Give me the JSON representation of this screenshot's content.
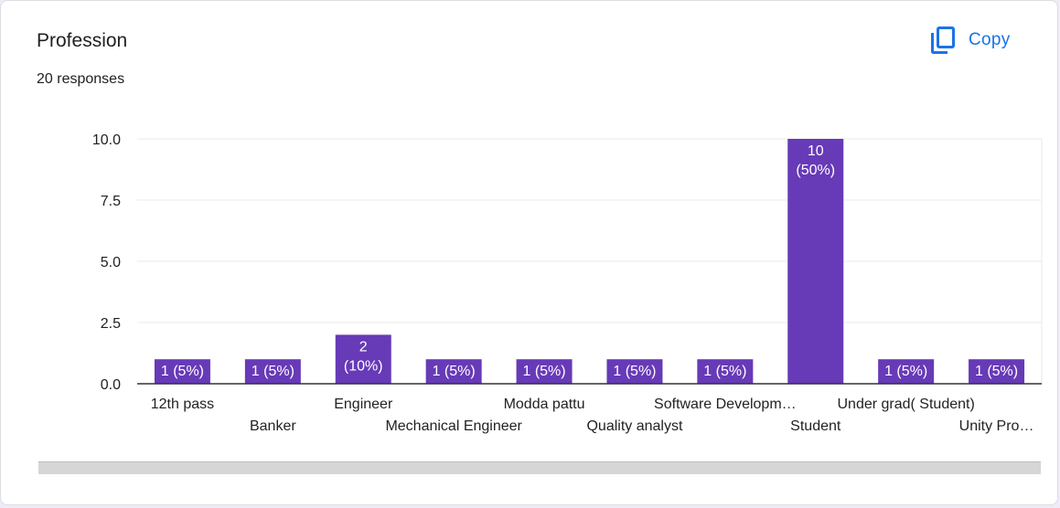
{
  "header": {
    "title": "Profession",
    "responses": "20 responses",
    "copy_label": "Copy"
  },
  "colors": {
    "bar": "#673ab7",
    "bar_label": "#ffffff",
    "grid": "#e8e8e8",
    "axis": "#333333",
    "text": "#222222",
    "copy_accent": "#1a73e8"
  },
  "chart_data": {
    "type": "bar",
    "title": "Profession",
    "subtitle": "20 responses",
    "categories": [
      "12th pass",
      "Banker",
      "Engineer",
      "Mechanical Engineer",
      "Modda pattu",
      "Quality analyst",
      "Software Developm…",
      "Student",
      "Under grad( Student)",
      "Unity Pro…"
    ],
    "values": [
      1,
      1,
      2,
      1,
      1,
      1,
      1,
      10,
      1,
      1
    ],
    "value_labels": [
      [
        "1 (5%)"
      ],
      [
        "1 (5%)"
      ],
      [
        "2",
        "(10%)"
      ],
      [
        "1 (5%)"
      ],
      [
        "1 (5%)"
      ],
      [
        "1 (5%)"
      ],
      [
        "1 (5%)"
      ],
      [
        "10",
        "(50%)"
      ],
      [
        "1 (5%)"
      ],
      [
        "1 (5%)"
      ]
    ],
    "y_ticks": [
      "0.0",
      "2.5",
      "5.0",
      "7.5",
      "10.0"
    ],
    "ylim": [
      0,
      10
    ],
    "grid": true,
    "legend": "none"
  }
}
